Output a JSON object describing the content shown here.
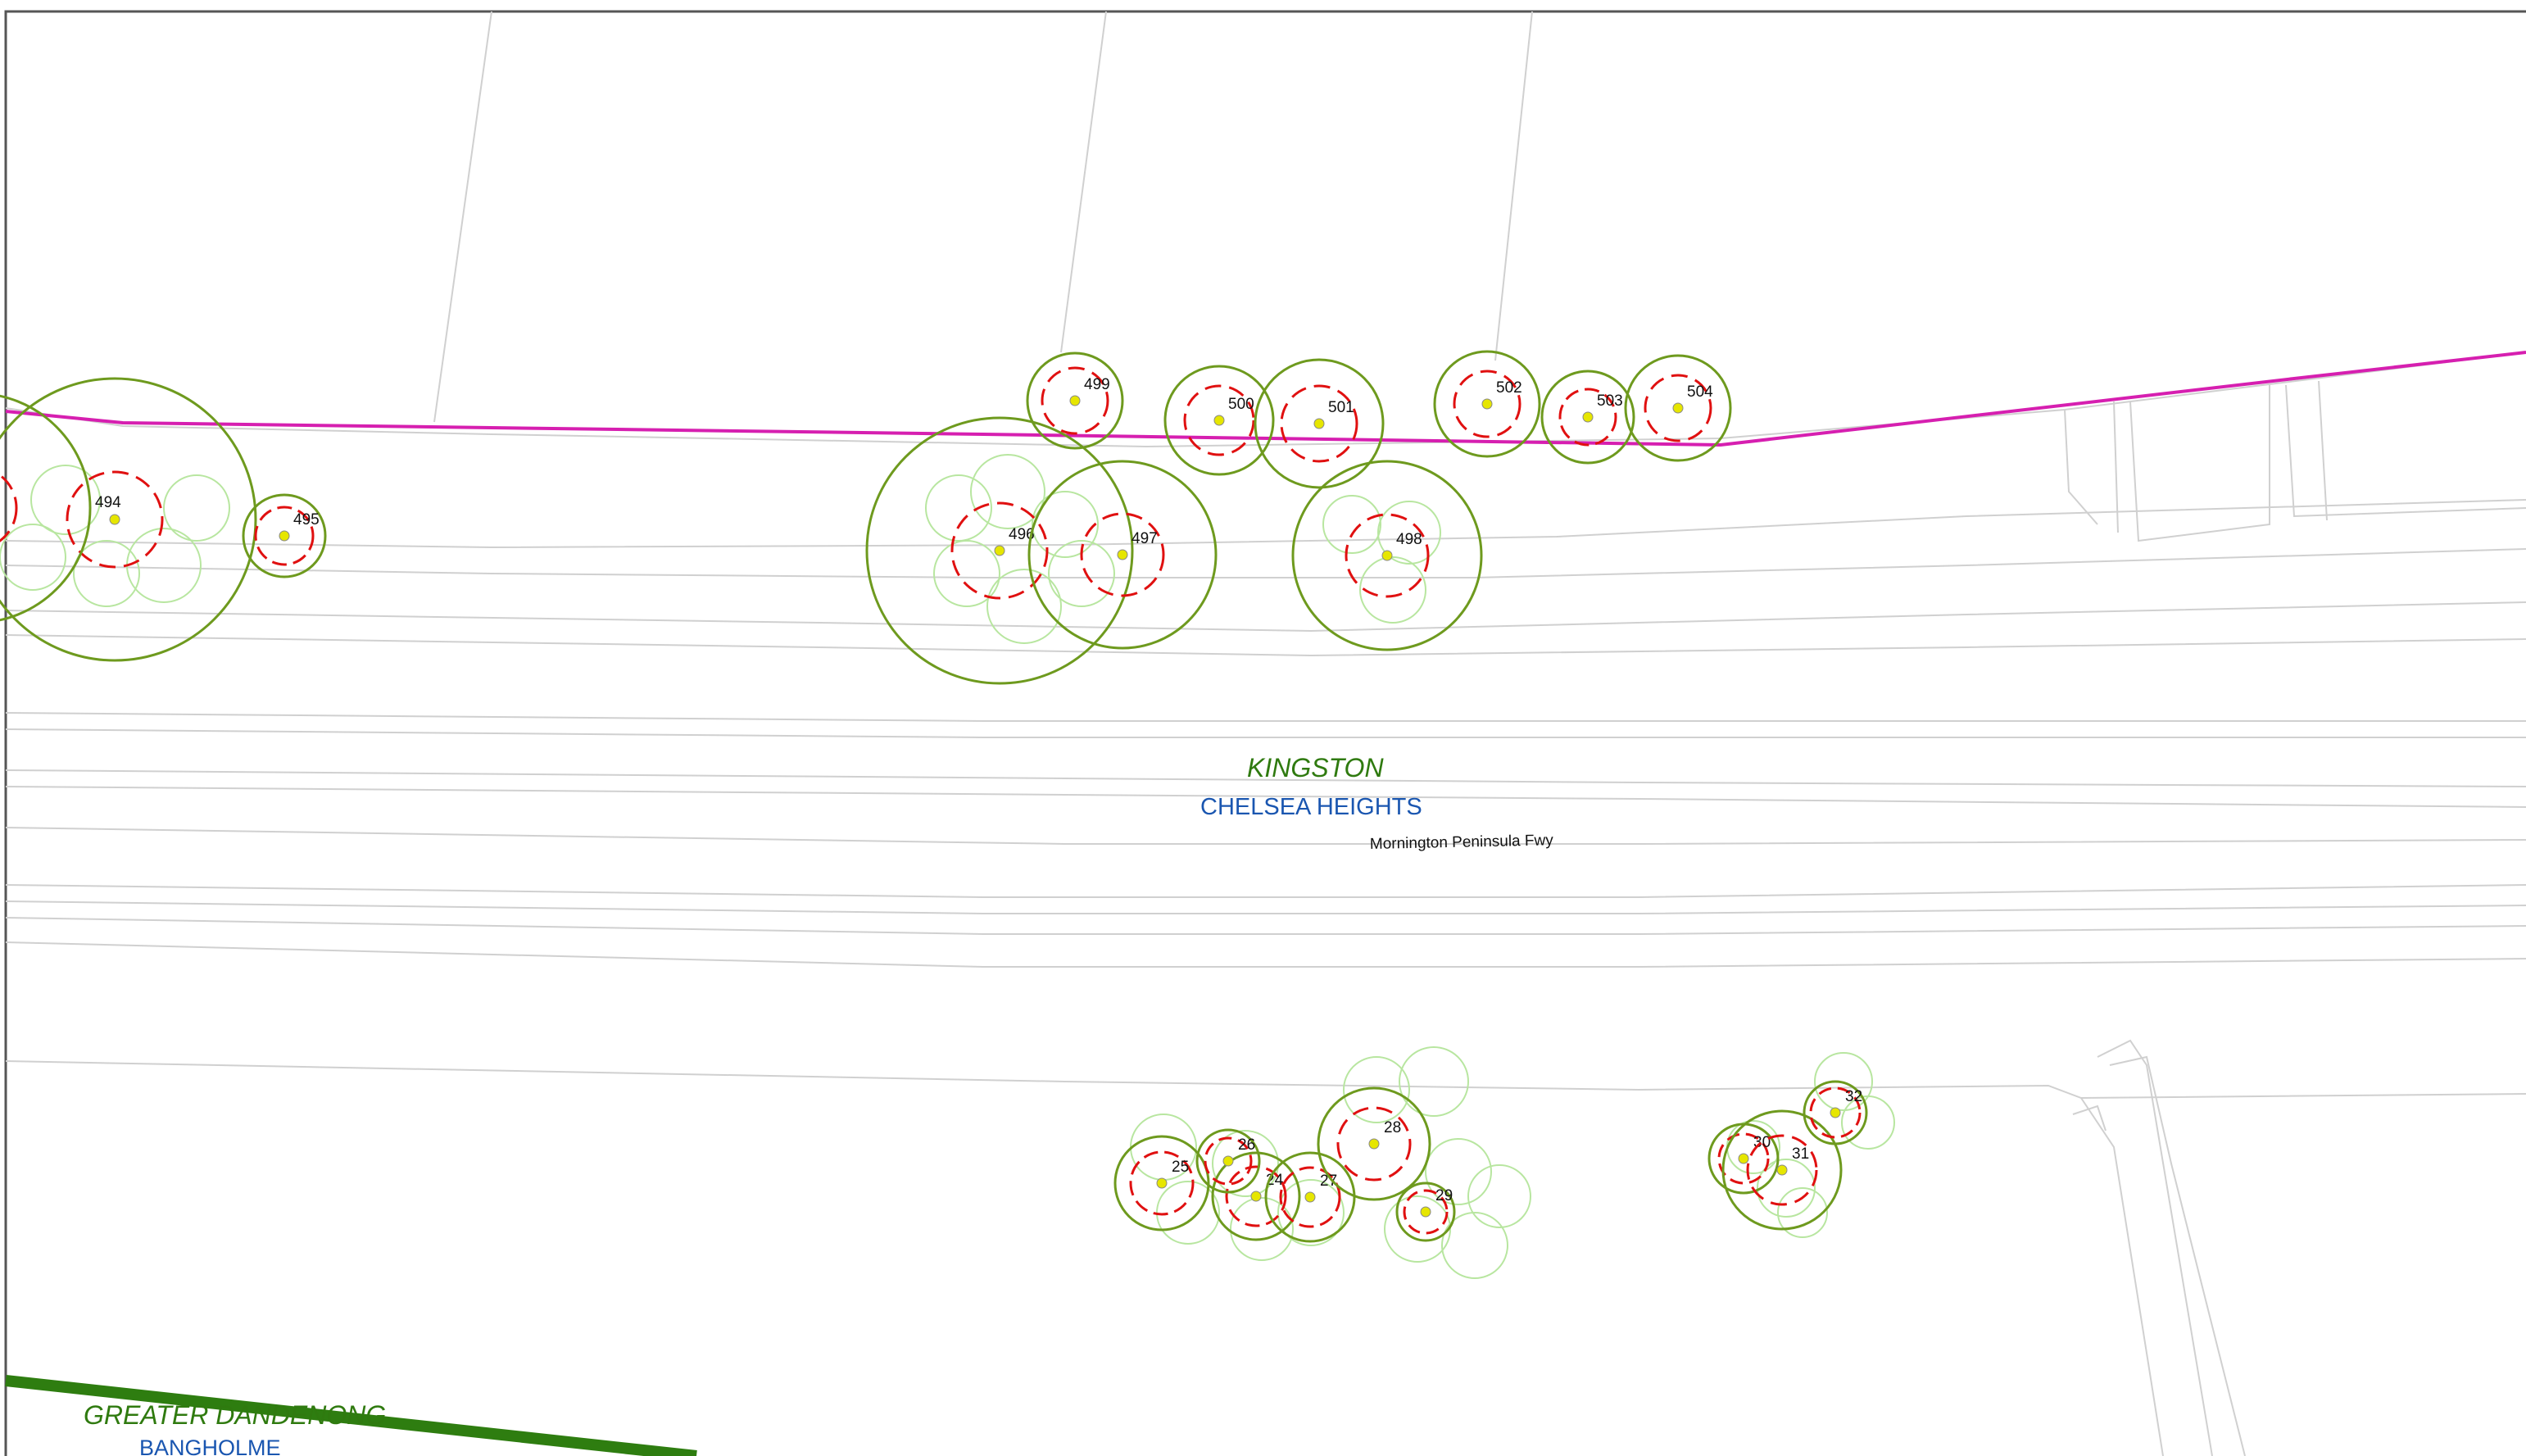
{
  "map": {
    "colors": {
      "tpz_circle": "#6e9a1e",
      "srz_circle": "#e01010",
      "tree_point": "#e6e600",
      "canopy_outline": "#a8e08a",
      "boundary_line": "#d61fb0",
      "council_boundary": "#2e7d10",
      "road_lines": "#cfcfcf",
      "council_label": "#2f7a0f",
      "suburb_label": "#1a56b0"
    },
    "labels": {
      "council_north": "KINGSTON",
      "suburb_north": "CHELSEA HEIGHTS",
      "road": "Mornington Peninsula Fwy",
      "council_south": "GREATER DANDENONG",
      "suburb_south": "BANGHOLME"
    },
    "trees": [
      {
        "id": "494"
      },
      {
        "id": "495"
      },
      {
        "id": "496"
      },
      {
        "id": "497"
      },
      {
        "id": "498"
      },
      {
        "id": "499"
      },
      {
        "id": "500"
      },
      {
        "id": "501"
      },
      {
        "id": "502"
      },
      {
        "id": "503"
      },
      {
        "id": "504"
      },
      {
        "id": "24"
      },
      {
        "id": "25"
      },
      {
        "id": "26"
      },
      {
        "id": "27"
      },
      {
        "id": "28"
      },
      {
        "id": "29"
      },
      {
        "id": "30"
      },
      {
        "id": "31"
      },
      {
        "id": "32"
      }
    ]
  }
}
